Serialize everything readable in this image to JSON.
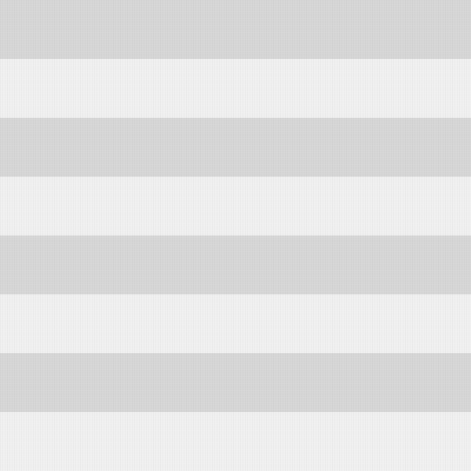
{
  "pattern": {
    "colors": {
      "dark_stripe": "#d6d6d6",
      "light_stripe": "#f0f0f0"
    }
  }
}
